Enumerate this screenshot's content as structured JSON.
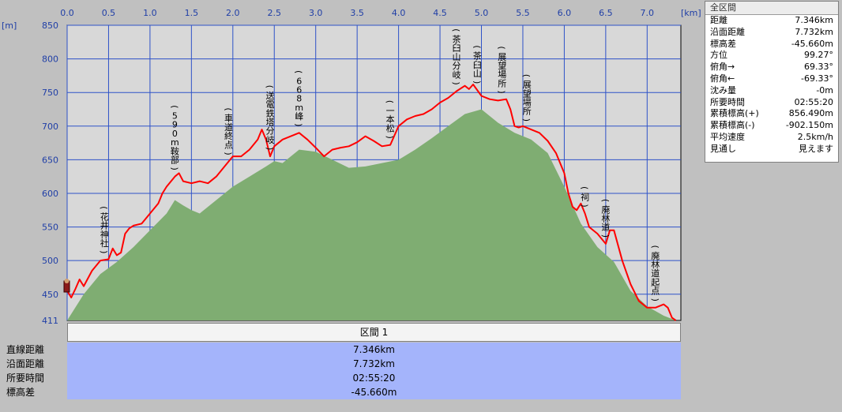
{
  "axes": {
    "x_unit": "[km]",
    "y_unit": "[m]",
    "x_ticks": [
      "0.0",
      "0.5",
      "1.0",
      "1.5",
      "2.0",
      "2.5",
      "3.0",
      "3.5",
      "4.0",
      "4.5",
      "5.0",
      "5.5",
      "6.0",
      "6.5",
      "7.0"
    ],
    "y_ticks": [
      "850",
      "800",
      "750",
      "700",
      "650",
      "600",
      "550",
      "500",
      "450",
      "411"
    ]
  },
  "colors": {
    "background": "#c0c0c0",
    "plot_background": "#d8d8d8",
    "grid": "#2e52c8",
    "route_line": "#ff0000",
    "terrain_fill": "#7fad72",
    "axis_text": "#1f3ea6",
    "section_fill": "#a4b4fb"
  },
  "chart_data": {
    "type": "area",
    "xlabel": "[km]",
    "ylabel": "[m]",
    "xlim": [
      0,
      7.346
    ],
    "ylim": [
      411,
      850
    ],
    "grid": true,
    "series": [
      {
        "role": "route-elevation",
        "x": [
          0.0,
          0.05,
          0.1,
          0.15,
          0.2,
          0.3,
          0.4,
          0.5,
          0.55,
          0.6,
          0.65,
          0.7,
          0.75,
          0.8,
          0.9,
          1.0,
          1.1,
          1.15,
          1.2,
          1.3,
          1.35,
          1.4,
          1.5,
          1.6,
          1.7,
          1.8,
          1.9,
          2.0,
          2.1,
          2.2,
          2.3,
          2.35,
          2.4,
          2.45,
          2.5,
          2.6,
          2.7,
          2.8,
          2.9,
          3.0,
          3.1,
          3.2,
          3.3,
          3.4,
          3.5,
          3.6,
          3.7,
          3.8,
          3.9,
          4.0,
          4.1,
          4.2,
          4.3,
          4.4,
          4.5,
          4.6,
          4.7,
          4.8,
          4.85,
          4.9,
          5.0,
          5.1,
          5.2,
          5.3,
          5.35,
          5.4,
          5.45,
          5.5,
          5.6,
          5.7,
          5.8,
          5.9,
          6.0,
          6.05,
          6.1,
          6.15,
          6.2,
          6.25,
          6.3,
          6.4,
          6.5,
          6.55,
          6.6,
          6.7,
          6.8,
          6.9,
          7.0,
          7.1,
          7.2,
          7.25,
          7.3,
          7.346
        ],
        "y": [
          455,
          445,
          458,
          472,
          462,
          485,
          500,
          502,
          518,
          508,
          512,
          540,
          548,
          552,
          555,
          570,
          585,
          600,
          610,
          625,
          630,
          618,
          615,
          618,
          615,
          625,
          640,
          655,
          655,
          665,
          680,
          695,
          680,
          655,
          670,
          680,
          685,
          690,
          680,
          668,
          655,
          665,
          668,
          670,
          676,
          685,
          678,
          670,
          672,
          700,
          710,
          715,
          718,
          725,
          735,
          742,
          752,
          760,
          755,
          762,
          745,
          740,
          738,
          740,
          725,
          700,
          698,
          700,
          695,
          690,
          678,
          660,
          630,
          600,
          580,
          575,
          585,
          570,
          550,
          540,
          525,
          545,
          545,
          500,
          465,
          440,
          430,
          430,
          435,
          430,
          415,
          411
        ]
      },
      {
        "role": "terrain-cross-section",
        "x": [
          0.0,
          0.2,
          0.4,
          0.6,
          0.8,
          1.0,
          1.2,
          1.3,
          1.4,
          1.5,
          1.6,
          1.8,
          2.0,
          2.2,
          2.4,
          2.5,
          2.6,
          2.8,
          3.0,
          3.2,
          3.4,
          3.6,
          3.8,
          4.0,
          4.2,
          4.4,
          4.6,
          4.8,
          5.0,
          5.2,
          5.4,
          5.6,
          5.8,
          6.0,
          6.2,
          6.4,
          6.6,
          6.8,
          7.0,
          7.2,
          7.346
        ],
        "y": [
          411,
          450,
          480,
          498,
          520,
          545,
          570,
          590,
          582,
          575,
          570,
          590,
          610,
          625,
          640,
          648,
          645,
          665,
          662,
          650,
          638,
          640,
          645,
          650,
          665,
          682,
          700,
          718,
          725,
          705,
          690,
          680,
          660,
          610,
          555,
          520,
          498,
          455,
          432,
          418,
          411
        ]
      }
    ],
    "waypoints": [
      {
        "name": "(花井神社)",
        "x": 0.45
      },
      {
        "name": "(590m鞍部)",
        "x": 1.3
      },
      {
        "name": "(車道終点)",
        "x": 1.95
      },
      {
        "name": "(送電鉄塔分岐)",
        "x": 2.45
      },
      {
        "name": "(668m峰)",
        "x": 2.8
      },
      {
        "name": "(一本松)",
        "x": 3.9
      },
      {
        "name": "(茶臼山分岐)",
        "x": 4.7
      },
      {
        "name": "(茶臼山)",
        "x": 4.95
      },
      {
        "name": "(展望場所)",
        "x": 5.25
      },
      {
        "name": "(展望場所)",
        "x": 5.55
      },
      {
        "name": "(祠)",
        "x": 6.25
      },
      {
        "name": "(廃林道)",
        "x": 6.5
      },
      {
        "name": "(廃林道起点)",
        "x": 7.1
      }
    ]
  },
  "stats_panel": {
    "title": "全区間",
    "rows": [
      {
        "label": "距離",
        "value": "7.346km"
      },
      {
        "label": "沿面距離",
        "value": "7.732km"
      },
      {
        "label": "標高差",
        "value": "-45.660m"
      },
      {
        "label": "方位",
        "value": "99.27°"
      },
      {
        "label": "俯角→",
        "value": "69.33°"
      },
      {
        "label": "俯角←",
        "value": "-69.33°"
      },
      {
        "label": "沈み量",
        "value": "-0m"
      },
      {
        "label": "所要時間",
        "value": "02:55:20"
      },
      {
        "label": "累積標高(+)",
        "value": "856.490m"
      },
      {
        "label": "累積標高(-)",
        "value": "-902.150m"
      },
      {
        "label": "平均速度",
        "value": "2.5km/h"
      },
      {
        "label": "見通し",
        "value": "見えます"
      }
    ]
  },
  "section_table": {
    "header": "区間 1",
    "row_labels": [
      "直線距離",
      "沿面距離",
      "所要時間",
      "標高差"
    ],
    "values": [
      "7.346km",
      "7.732km",
      "02:55:20",
      "-45.660m"
    ]
  }
}
